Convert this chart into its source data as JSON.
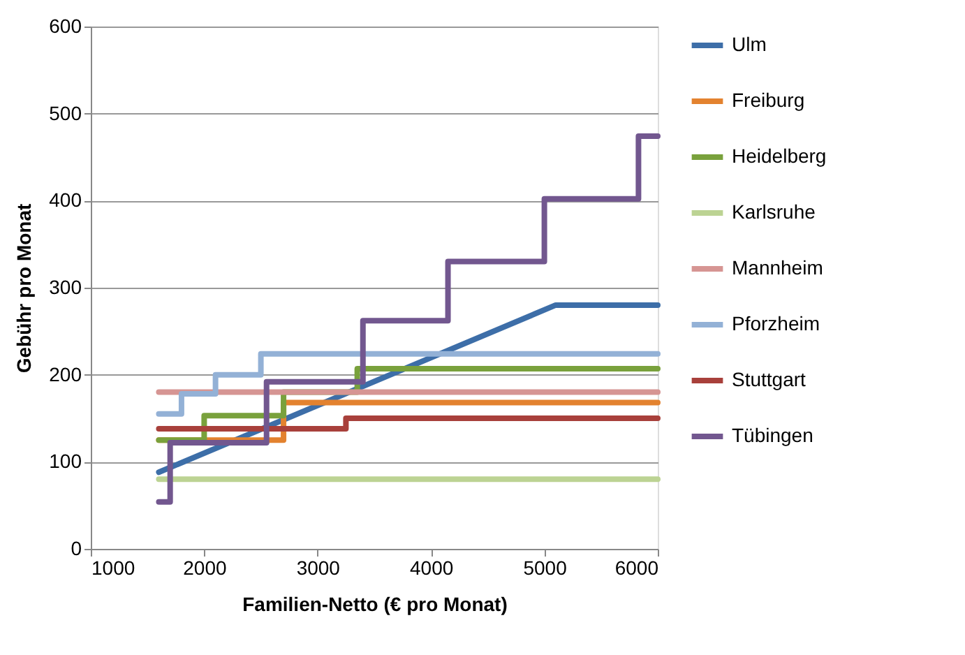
{
  "chart_data": {
    "type": "step",
    "xlabel": "Familien-Netto (€ pro Monat)",
    "ylabel": "Gebühr pro Monat",
    "xlim": [
      1000,
      6000
    ],
    "xticks": [
      1000,
      2000,
      3000,
      4000,
      5000,
      6000
    ],
    "ylim": [
      0,
      600
    ],
    "yticks": [
      0,
      100,
      200,
      300,
      400,
      500,
      600
    ],
    "grid": "y",
    "legend": "right",
    "line_style": "solid",
    "marker": "none",
    "series": [
      {
        "name": "Ulm",
        "type": "line",
        "color": "#3d6ea8",
        "x": [
          1600,
          5100,
          6000
        ],
        "values": [
          88,
          280,
          280
        ]
      },
      {
        "name": "Freiburg",
        "color": "#e3822f",
        "x": [
          1600,
          2700,
          6000
        ],
        "values": [
          125,
          168,
          168
        ]
      },
      {
        "name": "Heidelberg",
        "color": "#79a13c",
        "x": [
          1600,
          2000,
          2700,
          3350,
          6000
        ],
        "values": [
          125,
          153,
          180,
          207,
          207
        ]
      },
      {
        "name": "Karlsruhe",
        "color": "#bcd393",
        "x": [
          1600,
          6000
        ],
        "values": [
          80,
          80
        ]
      },
      {
        "name": "Mannheim",
        "color": "#d69593",
        "x": [
          1600,
          6000
        ],
        "values": [
          180,
          180
        ]
      },
      {
        "name": "Pforzheim",
        "color": "#93b1d6",
        "x": [
          1600,
          1800,
          2100,
          2500,
          6000
        ],
        "values": [
          155,
          178,
          200,
          224,
          224
        ]
      },
      {
        "name": "Stuttgart",
        "color": "#a8403b",
        "x": [
          1600,
          3250,
          6000
        ],
        "values": [
          138,
          150,
          150
        ]
      },
      {
        "name": "Tübingen",
        "color": "#72578f",
        "x": [
          1600,
          1700,
          2550,
          3400,
          4150,
          5000,
          5830,
          6000
        ],
        "values": [
          54,
          122,
          192,
          262,
          330,
          402,
          474,
          474
        ]
      }
    ]
  }
}
